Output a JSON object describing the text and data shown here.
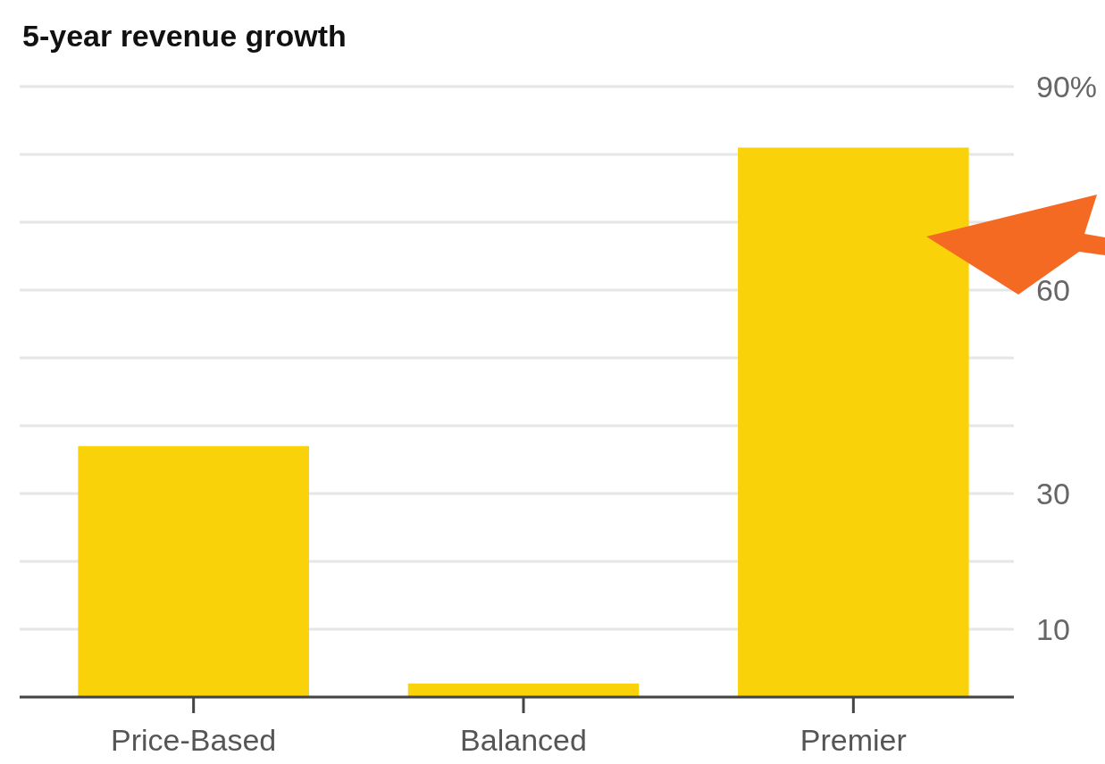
{
  "chart_data": {
    "type": "bar",
    "title": "5-year revenue growth",
    "categories": [
      "Price-Based",
      "Balanced",
      "Premier"
    ],
    "values": [
      37,
      2,
      81
    ],
    "color": "#f9d20a",
    "ylim": [
      0,
      90
    ],
    "yticks": [
      {
        "value": 0,
        "label": null
      },
      {
        "value": 10,
        "label": "10"
      },
      {
        "value": 20,
        "label": null
      },
      {
        "value": 30,
        "label": "30"
      },
      {
        "value": 40,
        "label": null
      },
      {
        "value": 50,
        "label": null
      },
      {
        "value": 60,
        "label": "60"
      },
      {
        "value": 70,
        "label": null
      },
      {
        "value": 80,
        "label": null
      },
      {
        "value": 90,
        "label": "90%"
      }
    ],
    "grid": "y"
  }
}
